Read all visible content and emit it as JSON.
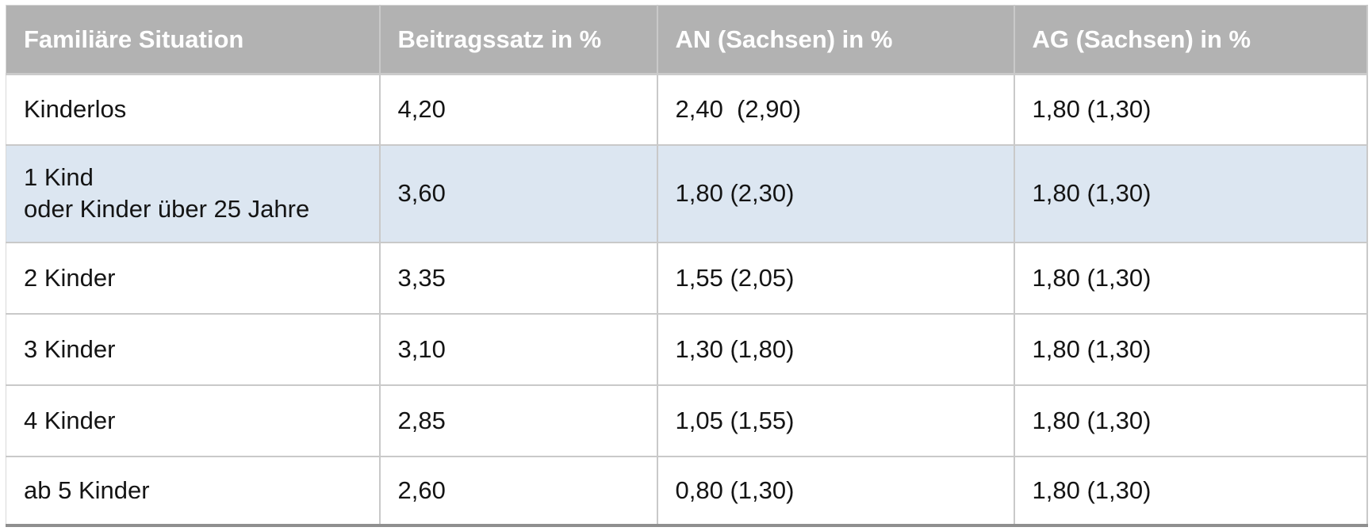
{
  "table": {
    "headers": [
      "Familiäre Situation",
      "Beitragssatz in %",
      "AN (Sachsen) in %",
      "AG (Sachsen) in %"
    ],
    "rows": [
      {
        "situation": "Kinderlos",
        "beitragssatz": "4,20",
        "an": "2,40  (2,90)",
        "ag": "1,80 (1,30)",
        "highlighted": false
      },
      {
        "situation": "1 Kind\noder Kinder über 25 Jahre",
        "beitragssatz": "3,60",
        "an": "1,80 (2,30)",
        "ag": "1,80 (1,30)",
        "highlighted": true
      },
      {
        "situation": "2 Kinder",
        "beitragssatz": "3,35",
        "an": "1,55 (2,05)",
        "ag": "1,80 (1,30)",
        "highlighted": false
      },
      {
        "situation": "3 Kinder",
        "beitragssatz": "3,10",
        "an": "1,30 (1,80)",
        "ag": "1,80 (1,30)",
        "highlighted": false
      },
      {
        "situation": "4 Kinder",
        "beitragssatz": "2,85",
        "an": "1,05 (1,55)",
        "ag": "1,80 (1,30)",
        "highlighted": false
      },
      {
        "situation": "ab 5 Kinder",
        "beitragssatz": "2,60",
        "an": "0,80 (1,30)",
        "ag": "1,80 (1,30)",
        "highlighted": false
      }
    ],
    "colors": {
      "header_bg": "#b2b2b2",
      "header_text": "#ffffff",
      "highlight_row_bg": "#dce6f1",
      "grid_line": "#c9c9c9",
      "bottom_border": "#8f8f8f",
      "body_text": "#141414"
    }
  }
}
